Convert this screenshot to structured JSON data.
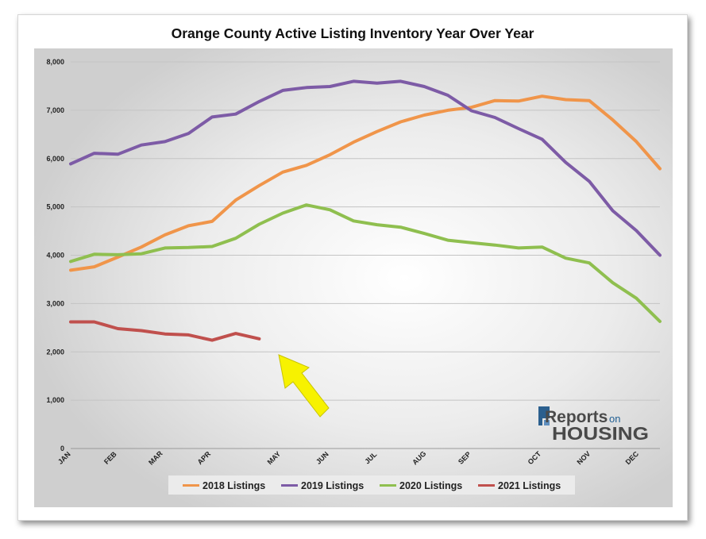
{
  "chart_data": {
    "type": "line",
    "title": "Orange County Active Listing Inventory Year Over Year",
    "xlabel": "",
    "ylabel": "",
    "ylim": [
      0,
      8000
    ],
    "yticks": [
      "0",
      "1,000",
      "2,000",
      "3,000",
      "4,000",
      "5,000",
      "6,000",
      "7,000",
      "8,000"
    ],
    "month_labels": [
      "JAN",
      "FEB",
      "MAR",
      "APR",
      "MAY",
      "JUN",
      "JUL",
      "AUG",
      "SEP",
      "OCT",
      "NOV",
      "DEC"
    ],
    "grid": true,
    "legend_position": "bottom",
    "series": [
      {
        "name": "2018 Listings",
        "color": "#f0954a",
        "values": [
          3690,
          3760,
          3960,
          4170,
          4420,
          4610,
          4700,
          5140,
          5440,
          5720,
          5860,
          6080,
          6340,
          6560,
          6760,
          6900,
          7000,
          7060,
          7200,
          7190,
          7290,
          7220,
          7200,
          6800,
          6350,
          5790
        ]
      },
      {
        "name": "2019 Listings",
        "color": "#7d5ba6",
        "values": [
          5890,
          6110,
          6090,
          6280,
          6350,
          6520,
          6860,
          6920,
          7180,
          7410,
          7470,
          7490,
          7600,
          7560,
          7600,
          7490,
          7310,
          6990,
          6850,
          6620,
          6400,
          5920,
          5530,
          4920,
          4510,
          4000
        ]
      },
      {
        "name": "2020 Listings",
        "color": "#8fbf4f",
        "values": [
          3870,
          4020,
          4010,
          4030,
          4150,
          4160,
          4180,
          4350,
          4640,
          4870,
          5040,
          4940,
          4710,
          4630,
          4580,
          4450,
          4310,
          4260,
          4210,
          4150,
          4170,
          3940,
          3840,
          3430,
          3110,
          2630
        ]
      },
      {
        "name": "2021 Listings",
        "color": "#c0504d",
        "values": [
          2620,
          2620,
          2480,
          2440,
          2370,
          2350,
          2240,
          2380,
          2270
        ]
      }
    ],
    "annotation": "yellow arrow pointing to latest 2021 data point"
  },
  "logo": {
    "brand_big": "Reports",
    "brand_small": "on",
    "brand_bottom": "HOUSING"
  }
}
